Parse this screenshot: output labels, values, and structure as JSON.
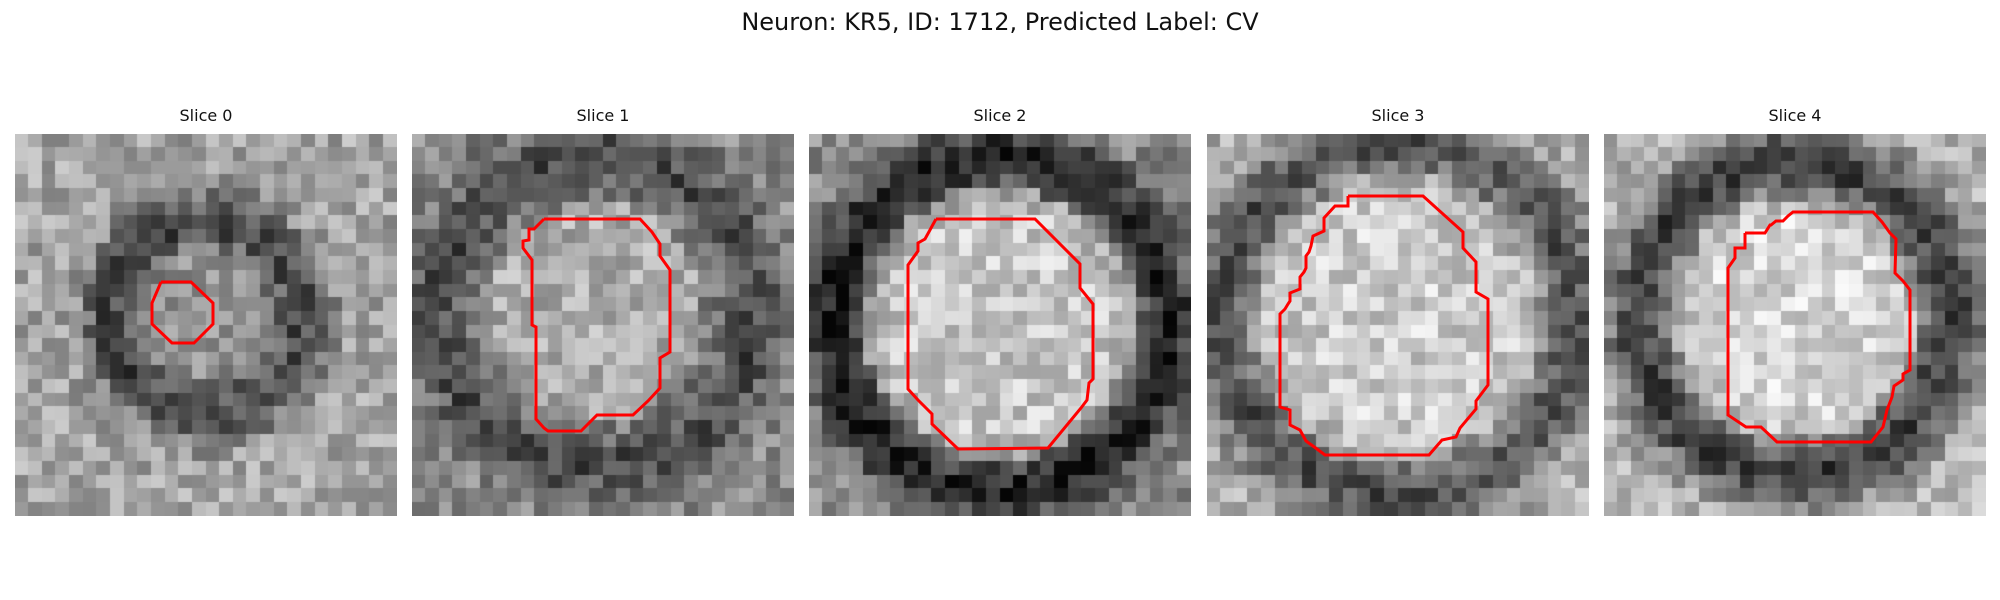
{
  "title": "Neuron: KR5, ID: 1712, Predicted Label: CV",
  "outline_color": "#ff0000",
  "panels": [
    {
      "label": "Slice 0"
    },
    {
      "label": "Slice 1"
    },
    {
      "label": "Slice 2"
    },
    {
      "label": "Slice 3"
    },
    {
      "label": "Slice 4"
    }
  ]
}
